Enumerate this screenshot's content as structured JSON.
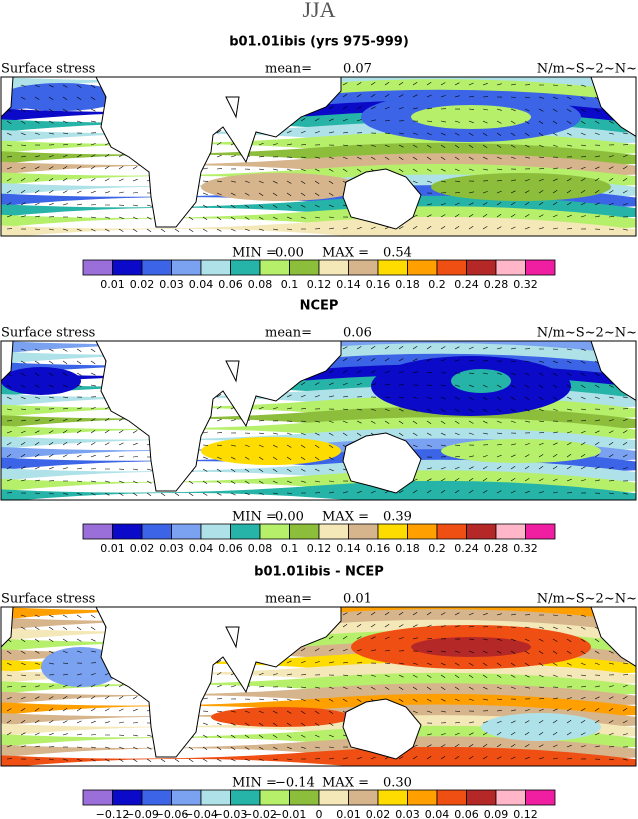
{
  "header": {
    "title": "JJA"
  },
  "palette": [
    "#9b6fd9",
    "#0a0ac8",
    "#3c64e6",
    "#7aa2f0",
    "#aee2e8",
    "#26b3a8",
    "#b6f06a",
    "#8cbe3c",
    "#f5e8b8",
    "#d6b48c",
    "#ffdc00",
    "#ffa000",
    "#f04f14",
    "#b42828",
    "#ffb6c8",
    "#f01ea0"
  ],
  "panels": [
    {
      "title": "b01.01ibis (yrs 975-999)",
      "variable": "Surface stress",
      "mean_label": "mean=",
      "mean": "0.07",
      "units": "N/m~S~2~N~",
      "min_label": "MIN =",
      "min": "0.00",
      "max_label": "MAX =",
      "max": "0.54",
      "colorbar_labels": [
        "0.01",
        "0.02",
        "0.03",
        "0.04",
        "0.06",
        "0.08",
        "0.1",
        "0.12",
        "0.14",
        "0.16",
        "0.18",
        "0.2",
        "0.24",
        "0.28",
        "0.32"
      ]
    },
    {
      "title": "NCEP",
      "variable": "Surface stress",
      "mean_label": "mean=",
      "mean": "0.06",
      "units": "N/m~S~2~N~",
      "min_label": "MIN =",
      "min": "0.00",
      "max_label": "MAX =",
      "max": "0.39",
      "colorbar_labels": [
        "0.01",
        "0.02",
        "0.03",
        "0.04",
        "0.06",
        "0.08",
        "0.1",
        "0.12",
        "0.14",
        "0.16",
        "0.18",
        "0.2",
        "0.24",
        "0.28",
        "0.32"
      ]
    },
    {
      "title": "b01.01ibis - NCEP",
      "variable": "Surface stress",
      "mean_label": "mean=",
      "mean": "0.01",
      "units": "N/m~S~2~N~",
      "min_label": "MIN =",
      "min": "−0.14",
      "max_label": "MAX =",
      "max": "0.30",
      "colorbar_labels": [
        "−0.12",
        "−0.09",
        "−0.06",
        "−0.04",
        "−0.03",
        "−0.02",
        "−0.01",
        "0",
        "0.01",
        "0.02",
        "0.03",
        "0.04",
        "0.06",
        "0.09",
        "0.12"
      ]
    }
  ]
}
